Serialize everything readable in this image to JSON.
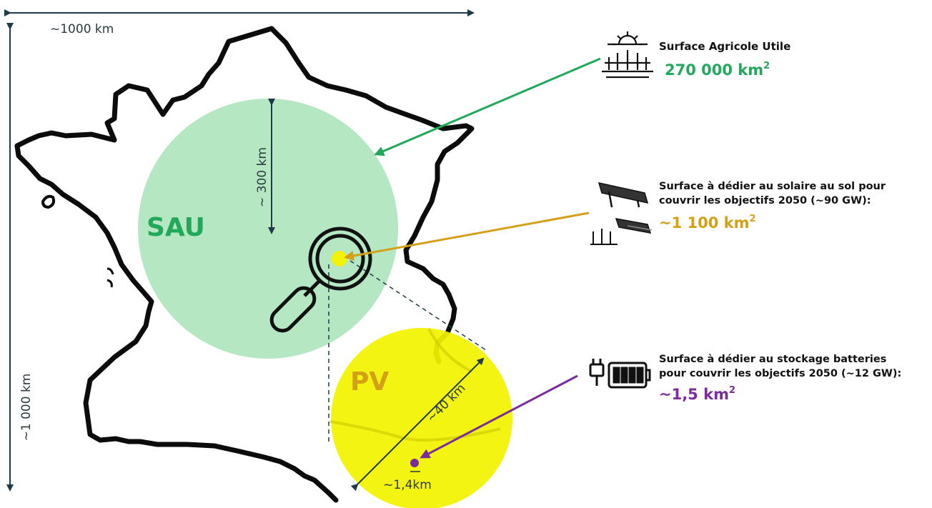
{
  "colors": {
    "sau_green": "#22a85a",
    "sau_fill": "#b5e7c3",
    "pv_yellow": "#f3f300",
    "solar_gold": "#d4a017",
    "battery_purple": "#7a2d9a",
    "dim_navy": "#1e3a4a"
  },
  "dimensions": {
    "width_label": "~1000 km",
    "height_label": "~1 000 km",
    "sau_radius_label": "~ 300 km",
    "pv_diameter_label": "~40 km",
    "battery_label": "~1,4km"
  },
  "circles": {
    "sau_label": "SAU",
    "pv_label": "PV"
  },
  "legend": {
    "agri": {
      "icon": "farm-sun-icon",
      "title": "Surface Agricole Utile",
      "value": "270 000 km",
      "exp": "2"
    },
    "solar": {
      "icon": "solar-panel-icon",
      "line1": "Surface à dédier au solaire au sol pour",
      "line2": "couvrir les objectifs 2050 (~90 GW):",
      "value": "~1 100 km",
      "exp": "2"
    },
    "battery": {
      "icon": "battery-plug-icon",
      "line1": "Surface à dédier au stockage batteries",
      "line2": "pour couvrir les objectifs 2050 (~12 GW):",
      "value": "~1,5 km",
      "exp": "2"
    }
  },
  "magnifier_icon": "magnifier-icon"
}
